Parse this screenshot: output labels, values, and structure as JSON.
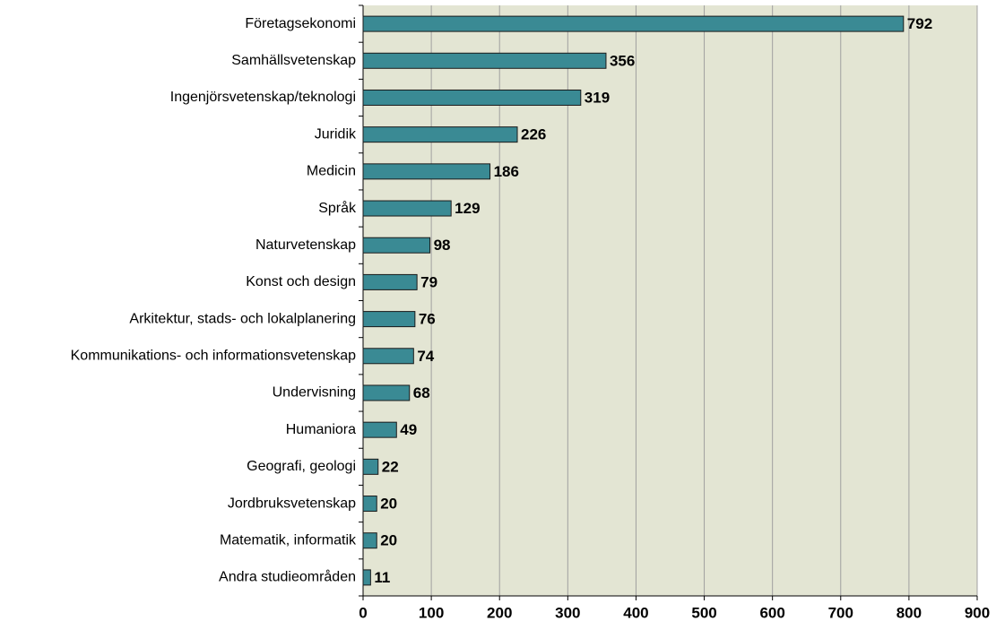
{
  "chart_data": {
    "type": "barh",
    "categories": [
      "Företagsekonomi",
      "Samhällsvetenskap",
      "Ingenjörsvetenskap/teknologi",
      "Juridik",
      "Medicin",
      "Språk",
      "Naturvetenskap",
      "Konst och design",
      "Arkitektur, stads- och lokalplanering",
      "Kommunikations- och informationsvetenskap",
      "Undervisning",
      "Humaniora",
      "Geografi, geologi",
      "Jordbruksvetenskap",
      "Matematik, informatik",
      "Andra studieområden"
    ],
    "values": [
      792,
      356,
      319,
      226,
      186,
      129,
      98,
      79,
      76,
      74,
      68,
      49,
      22,
      20,
      20,
      11
    ],
    "color": "#3a8a94",
    "xlim": [
      0,
      900
    ],
    "xticks": [
      0,
      100,
      200,
      300,
      400,
      500,
      600,
      700,
      800,
      900
    ],
    "grid": true
  }
}
